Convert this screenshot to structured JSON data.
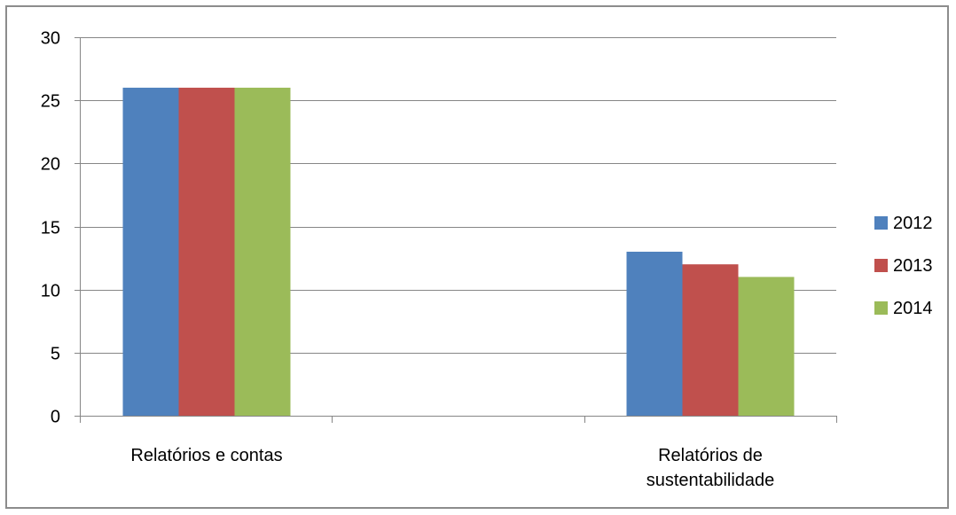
{
  "chart_data": {
    "type": "bar",
    "categories": [
      "Relatórios e contas",
      "Relatórios de sustentabilidade"
    ],
    "category_label_lines": [
      [
        "Relatórios e contas"
      ],
      [
        "Relatórios de",
        "sustentabilidade"
      ]
    ],
    "series": [
      {
        "name": "2012",
        "values": [
          26,
          13
        ],
        "color": "#4F81BD"
      },
      {
        "name": "2013",
        "values": [
          26,
          12
        ],
        "color": "#C0504D"
      },
      {
        "name": "2014",
        "values": [
          26,
          11
        ],
        "color": "#9BBB59"
      }
    ],
    "ylim": [
      0,
      30
    ],
    "yticks": [
      0,
      5,
      10,
      15,
      20,
      25,
      30
    ],
    "ytick_labels": [
      "0",
      "5",
      "10",
      "15",
      "20",
      "25",
      "30"
    ],
    "grid": true,
    "legend_position": "right",
    "title": "",
    "xlabel": "",
    "ylabel": ""
  },
  "colors": {
    "gridline": "#868686",
    "axis": "#868686",
    "frame": "#8c8c8c"
  }
}
